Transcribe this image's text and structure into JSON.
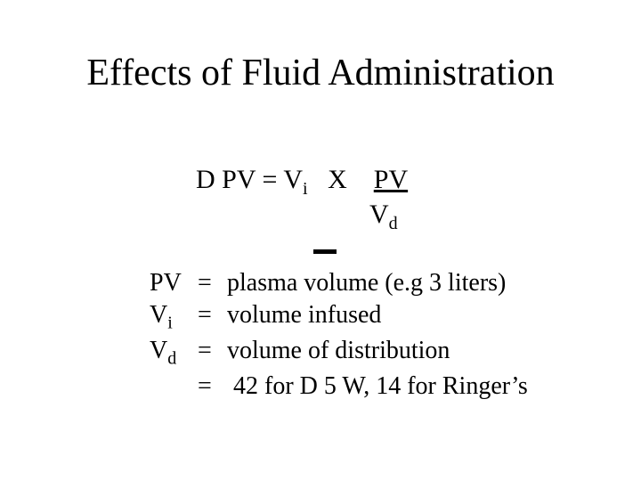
{
  "title": "Effects of Fluid Administration",
  "equation": {
    "delta": "D",
    "lhs": " PV = V",
    "sub_i": "i",
    "mult": "   X    ",
    "pv_underlined": "PV",
    "vd_V": "V",
    "vd_d": "d"
  },
  "defs": {
    "row1_sym": "PV",
    "row1_eq": "=",
    "row1_text": "plasma volume (e.g 3 liters)",
    "row2_sym_V": "V",
    "row2_sym_i": "i",
    "row2_eq": "=",
    "row2_text": "volume infused",
    "row3_sym_V": "V",
    "row3_sym_d": "d",
    "row3_eq": "=",
    "row3_text": "volume of distribution",
    "row4_eq": "=",
    "row4_text": "42 for D 5 W, 14 for Ringer’s"
  },
  "style": {
    "background": "#ffffff",
    "text_color": "#000000",
    "font_family": "Times New Roman",
    "title_fontsize": 42,
    "body_fontsize": 30,
    "def_fontsize": 28,
    "sub_fontsize": 20
  }
}
